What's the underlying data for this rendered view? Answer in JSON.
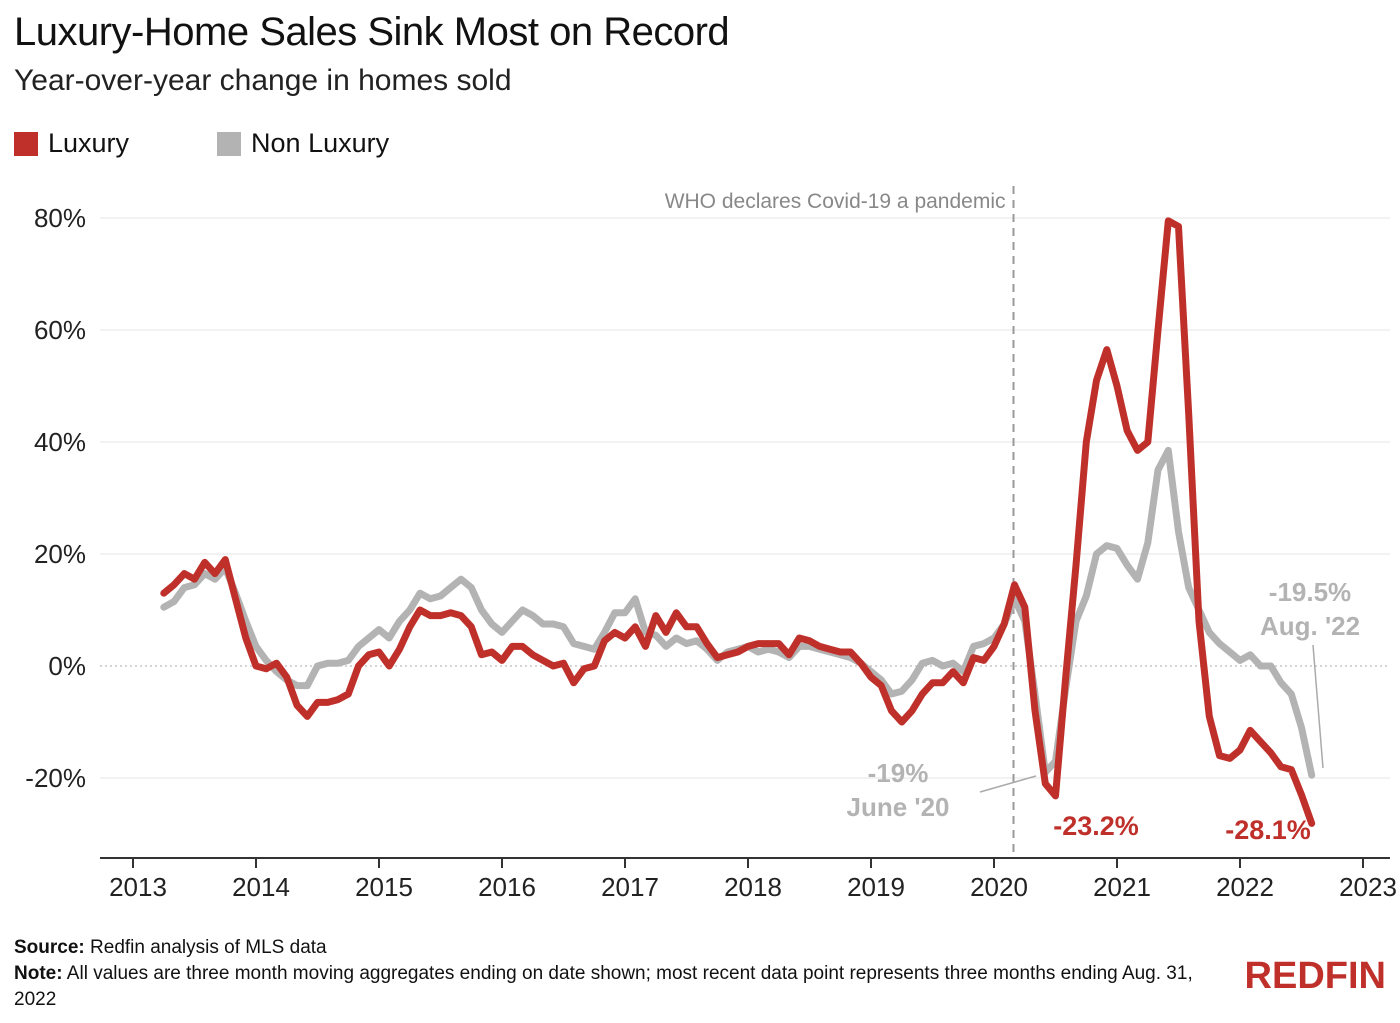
{
  "header": {
    "title": "Luxury-Home Sales Sink Most on Record",
    "subtitle": "Year-over-year change in homes sold"
  },
  "legend": [
    {
      "label": "Luxury",
      "color": "#c0302b"
    },
    {
      "label": "Non Luxury",
      "color": "#b3b3b3"
    }
  ],
  "footer": {
    "source_label": "Source:",
    "source_text": "Redfin analysis of MLS data",
    "note_label": "Note:",
    "note_text": "All values are three month moving aggregates ending on date shown; most recent data point represents three months ending Aug. 31, 2022"
  },
  "brand": "REDFIN",
  "chart_data": {
    "type": "line",
    "title": "Luxury-Home Sales Sink Most on Record",
    "subtitle": "Year-over-year change in homes sold",
    "xlabel": "",
    "ylabel": "",
    "x_ticks": [
      "2013",
      "2014",
      "2015",
      "2016",
      "2017",
      "2018",
      "2019",
      "2020",
      "2021",
      "2022",
      "2023"
    ],
    "y_ticks": [
      "80%",
      "60%",
      "40%",
      "20%",
      "0%",
      "-20%"
    ],
    "ylim": [
      -34,
      84
    ],
    "xlim": [
      "2013-01",
      "2023-02"
    ],
    "grid": "horizontal",
    "legend_position": "top-left",
    "annotations": {
      "covid": {
        "text": "WHO declares Covid-19 a pandemic",
        "date": "2020-03"
      },
      "nonlux_june20": {
        "line1": "-19%",
        "line2": "June '20"
      },
      "lux_2020_low": {
        "text": "-23.2%"
      },
      "lux_last": {
        "text": "-28.1%"
      },
      "nonlux_aug22": {
        "line1": "-19.5%",
        "line2": "Aug. '22"
      }
    },
    "series": [
      {
        "name": "Luxury",
        "color": "#c0302b",
        "points": [
          [
            "2013-04",
            13
          ],
          [
            "2013-05",
            14.5
          ],
          [
            "2013-06",
            16.5
          ],
          [
            "2013-07",
            15.5
          ],
          [
            "2013-08",
            18.5
          ],
          [
            "2013-09",
            16.5
          ],
          [
            "2013-10",
            19
          ],
          [
            "2013-11",
            12
          ],
          [
            "2013-12",
            5
          ],
          [
            "2014-01",
            0
          ],
          [
            "2014-02",
            -0.5
          ],
          [
            "2014-03",
            0.5
          ],
          [
            "2014-04",
            -2
          ],
          [
            "2014-05",
            -7
          ],
          [
            "2014-06",
            -9
          ],
          [
            "2014-07",
            -6.5
          ],
          [
            "2014-08",
            -6.5
          ],
          [
            "2014-09",
            -6
          ],
          [
            "2014-10",
            -5
          ],
          [
            "2014-11",
            0
          ],
          [
            "2014-12",
            2
          ],
          [
            "2015-01",
            2.5
          ],
          [
            "2015-02",
            0
          ],
          [
            "2015-03",
            3
          ],
          [
            "2015-04",
            7
          ],
          [
            "2015-05",
            10
          ],
          [
            "2015-06",
            9
          ],
          [
            "2015-07",
            9
          ],
          [
            "2015-08",
            9.5
          ],
          [
            "2015-09",
            9
          ],
          [
            "2015-10",
            7
          ],
          [
            "2015-11",
            2
          ],
          [
            "2015-12",
            2.5
          ],
          [
            "2016-01",
            1
          ],
          [
            "2016-02",
            3.5
          ],
          [
            "2016-03",
            3.5
          ],
          [
            "2016-04",
            2
          ],
          [
            "2016-05",
            1
          ],
          [
            "2016-06",
            0
          ],
          [
            "2016-07",
            0.5
          ],
          [
            "2016-08",
            -3
          ],
          [
            "2016-09",
            -0.5
          ],
          [
            "2016-10",
            0
          ],
          [
            "2016-11",
            4.5
          ],
          [
            "2016-12",
            6
          ],
          [
            "2017-01",
            5
          ],
          [
            "2017-02",
            7
          ],
          [
            "2017-03",
            3.5
          ],
          [
            "2017-04",
            9
          ],
          [
            "2017-05",
            6
          ],
          [
            "2017-06",
            9.5
          ],
          [
            "2017-07",
            7
          ],
          [
            "2017-08",
            7
          ],
          [
            "2017-09",
            4
          ],
          [
            "2017-10",
            1.5
          ],
          [
            "2017-11",
            2
          ],
          [
            "2017-12",
            2.5
          ],
          [
            "2018-01",
            3.5
          ],
          [
            "2018-02",
            4
          ],
          [
            "2018-03",
            4
          ],
          [
            "2018-04",
            4
          ],
          [
            "2018-05",
            2
          ],
          [
            "2018-06",
            5
          ],
          [
            "2018-07",
            4.5
          ],
          [
            "2018-08",
            3.5
          ],
          [
            "2018-09",
            3
          ],
          [
            "2018-10",
            2.5
          ],
          [
            "2018-11",
            2.5
          ],
          [
            "2018-12",
            0.5
          ],
          [
            "2019-01",
            -2
          ],
          [
            "2019-02",
            -3.5
          ],
          [
            "2019-03",
            -8
          ],
          [
            "2019-04",
            -10
          ],
          [
            "2019-05",
            -8
          ],
          [
            "2019-06",
            -5
          ],
          [
            "2019-07",
            -3
          ],
          [
            "2019-08",
            -3
          ],
          [
            "2019-09",
            -1
          ],
          [
            "2019-10",
            -3
          ],
          [
            "2019-11",
            1.5
          ],
          [
            "2019-12",
            1
          ],
          [
            "2020-01",
            3.5
          ],
          [
            "2020-02",
            7.5
          ],
          [
            "2020-03",
            14.5
          ],
          [
            "2020-04",
            10.5
          ],
          [
            "2020-05",
            -8
          ],
          [
            "2020-06",
            -21
          ],
          [
            "2020-07",
            -23.2
          ],
          [
            "2020-08",
            -2
          ],
          [
            "2020-09",
            18
          ],
          [
            "2020-10",
            40
          ],
          [
            "2020-11",
            51
          ],
          [
            "2020-12",
            56.5
          ],
          [
            "2021-01",
            50
          ],
          [
            "2021-02",
            42
          ],
          [
            "2021-03",
            38.5
          ],
          [
            "2021-04",
            40
          ],
          [
            "2021-05",
            60
          ],
          [
            "2021-06",
            79.5
          ],
          [
            "2021-07",
            78.5
          ],
          [
            "2021-08",
            45
          ],
          [
            "2021-09",
            8
          ],
          [
            "2021-10",
            -9
          ],
          [
            "2021-11",
            -16
          ],
          [
            "2021-12",
            -16.5
          ],
          [
            "2022-01",
            -15
          ],
          [
            "2022-02",
            -11.5
          ],
          [
            "2022-03",
            -13.5
          ],
          [
            "2022-04",
            -15.5
          ],
          [
            "2022-05",
            -18
          ],
          [
            "2022-06",
            -18.5
          ],
          [
            "2022-07",
            -23
          ],
          [
            "2022-08",
            -28.1
          ]
        ]
      },
      {
        "name": "Non Luxury",
        "color": "#b3b3b3",
        "points": [
          [
            "2013-04",
            10.5
          ],
          [
            "2013-05",
            11.5
          ],
          [
            "2013-06",
            14
          ],
          [
            "2013-07",
            14.5
          ],
          [
            "2013-08",
            16.5
          ],
          [
            "2013-09",
            15.5
          ],
          [
            "2013-10",
            17.5
          ],
          [
            "2013-11",
            13
          ],
          [
            "2013-12",
            8
          ],
          [
            "2014-01",
            3.5
          ],
          [
            "2014-02",
            1
          ],
          [
            "2014-03",
            -1
          ],
          [
            "2014-04",
            -2.5
          ],
          [
            "2014-05",
            -3.5
          ],
          [
            "2014-06",
            -3.5
          ],
          [
            "2014-07",
            0
          ],
          [
            "2014-08",
            0.5
          ],
          [
            "2014-09",
            0.5
          ],
          [
            "2014-10",
            1
          ],
          [
            "2014-11",
            3.5
          ],
          [
            "2014-12",
            5
          ],
          [
            "2015-01",
            6.5
          ],
          [
            "2015-02",
            5
          ],
          [
            "2015-03",
            8
          ],
          [
            "2015-04",
            10
          ],
          [
            "2015-05",
            13
          ],
          [
            "2015-06",
            12
          ],
          [
            "2015-07",
            12.5
          ],
          [
            "2015-08",
            14
          ],
          [
            "2015-09",
            15.5
          ],
          [
            "2015-10",
            14
          ],
          [
            "2015-11",
            10
          ],
          [
            "2015-12",
            7.5
          ],
          [
            "2016-01",
            6
          ],
          [
            "2016-02",
            8
          ],
          [
            "2016-03",
            10
          ],
          [
            "2016-04",
            9
          ],
          [
            "2016-05",
            7.5
          ],
          [
            "2016-06",
            7.5
          ],
          [
            "2016-07",
            7
          ],
          [
            "2016-08",
            4
          ],
          [
            "2016-09",
            3.5
          ],
          [
            "2016-10",
            3
          ],
          [
            "2016-11",
            6
          ],
          [
            "2016-12",
            9.5
          ],
          [
            "2017-01",
            9.5
          ],
          [
            "2017-02",
            12
          ],
          [
            "2017-03",
            6
          ],
          [
            "2017-04",
            5.5
          ],
          [
            "2017-05",
            3.5
          ],
          [
            "2017-06",
            5
          ],
          [
            "2017-07",
            4
          ],
          [
            "2017-08",
            4.5
          ],
          [
            "2017-09",
            3
          ],
          [
            "2017-10",
            1
          ],
          [
            "2017-11",
            2.5
          ],
          [
            "2017-12",
            3
          ],
          [
            "2018-01",
            3.5
          ],
          [
            "2018-02",
            2.5
          ],
          [
            "2018-03",
            3
          ],
          [
            "2018-04",
            2.5
          ],
          [
            "2018-05",
            1.5
          ],
          [
            "2018-06",
            3.5
          ],
          [
            "2018-07",
            3.5
          ],
          [
            "2018-08",
            3
          ],
          [
            "2018-09",
            2.5
          ],
          [
            "2018-10",
            2
          ],
          [
            "2018-11",
            1.5
          ],
          [
            "2018-12",
            0.5
          ],
          [
            "2019-01",
            -1
          ],
          [
            "2019-02",
            -2.5
          ],
          [
            "2019-03",
            -5
          ],
          [
            "2019-04",
            -4.5
          ],
          [
            "2019-05",
            -2.5
          ],
          [
            "2019-06",
            0.5
          ],
          [
            "2019-07",
            1
          ],
          [
            "2019-08",
            0
          ],
          [
            "2019-09",
            0.5
          ],
          [
            "2019-10",
            -1
          ],
          [
            "2019-11",
            3.5
          ],
          [
            "2019-12",
            4
          ],
          [
            "2020-01",
            5
          ],
          [
            "2020-02",
            7.5
          ],
          [
            "2020-03",
            12
          ],
          [
            "2020-04",
            8
          ],
          [
            "2020-05",
            -5
          ],
          [
            "2020-06",
            -19
          ],
          [
            "2020-07",
            -17
          ],
          [
            "2020-08",
            -4
          ],
          [
            "2020-09",
            8
          ],
          [
            "2020-10",
            12.5
          ],
          [
            "2020-11",
            20
          ],
          [
            "2020-12",
            21.5
          ],
          [
            "2021-01",
            21
          ],
          [
            "2021-02",
            18
          ],
          [
            "2021-03",
            15.5
          ],
          [
            "2021-04",
            22
          ],
          [
            "2021-05",
            35
          ],
          [
            "2021-06",
            38.5
          ],
          [
            "2021-07",
            24
          ],
          [
            "2021-08",
            14
          ],
          [
            "2021-09",
            10
          ],
          [
            "2021-10",
            6
          ],
          [
            "2021-11",
            4
          ],
          [
            "2021-12",
            2.5
          ],
          [
            "2022-01",
            1
          ],
          [
            "2022-02",
            2
          ],
          [
            "2022-03",
            0
          ],
          [
            "2022-04",
            0
          ],
          [
            "2022-05",
            -3
          ],
          [
            "2022-06",
            -5
          ],
          [
            "2022-07",
            -11
          ],
          [
            "2022-08",
            -19.5
          ]
        ]
      }
    ]
  }
}
